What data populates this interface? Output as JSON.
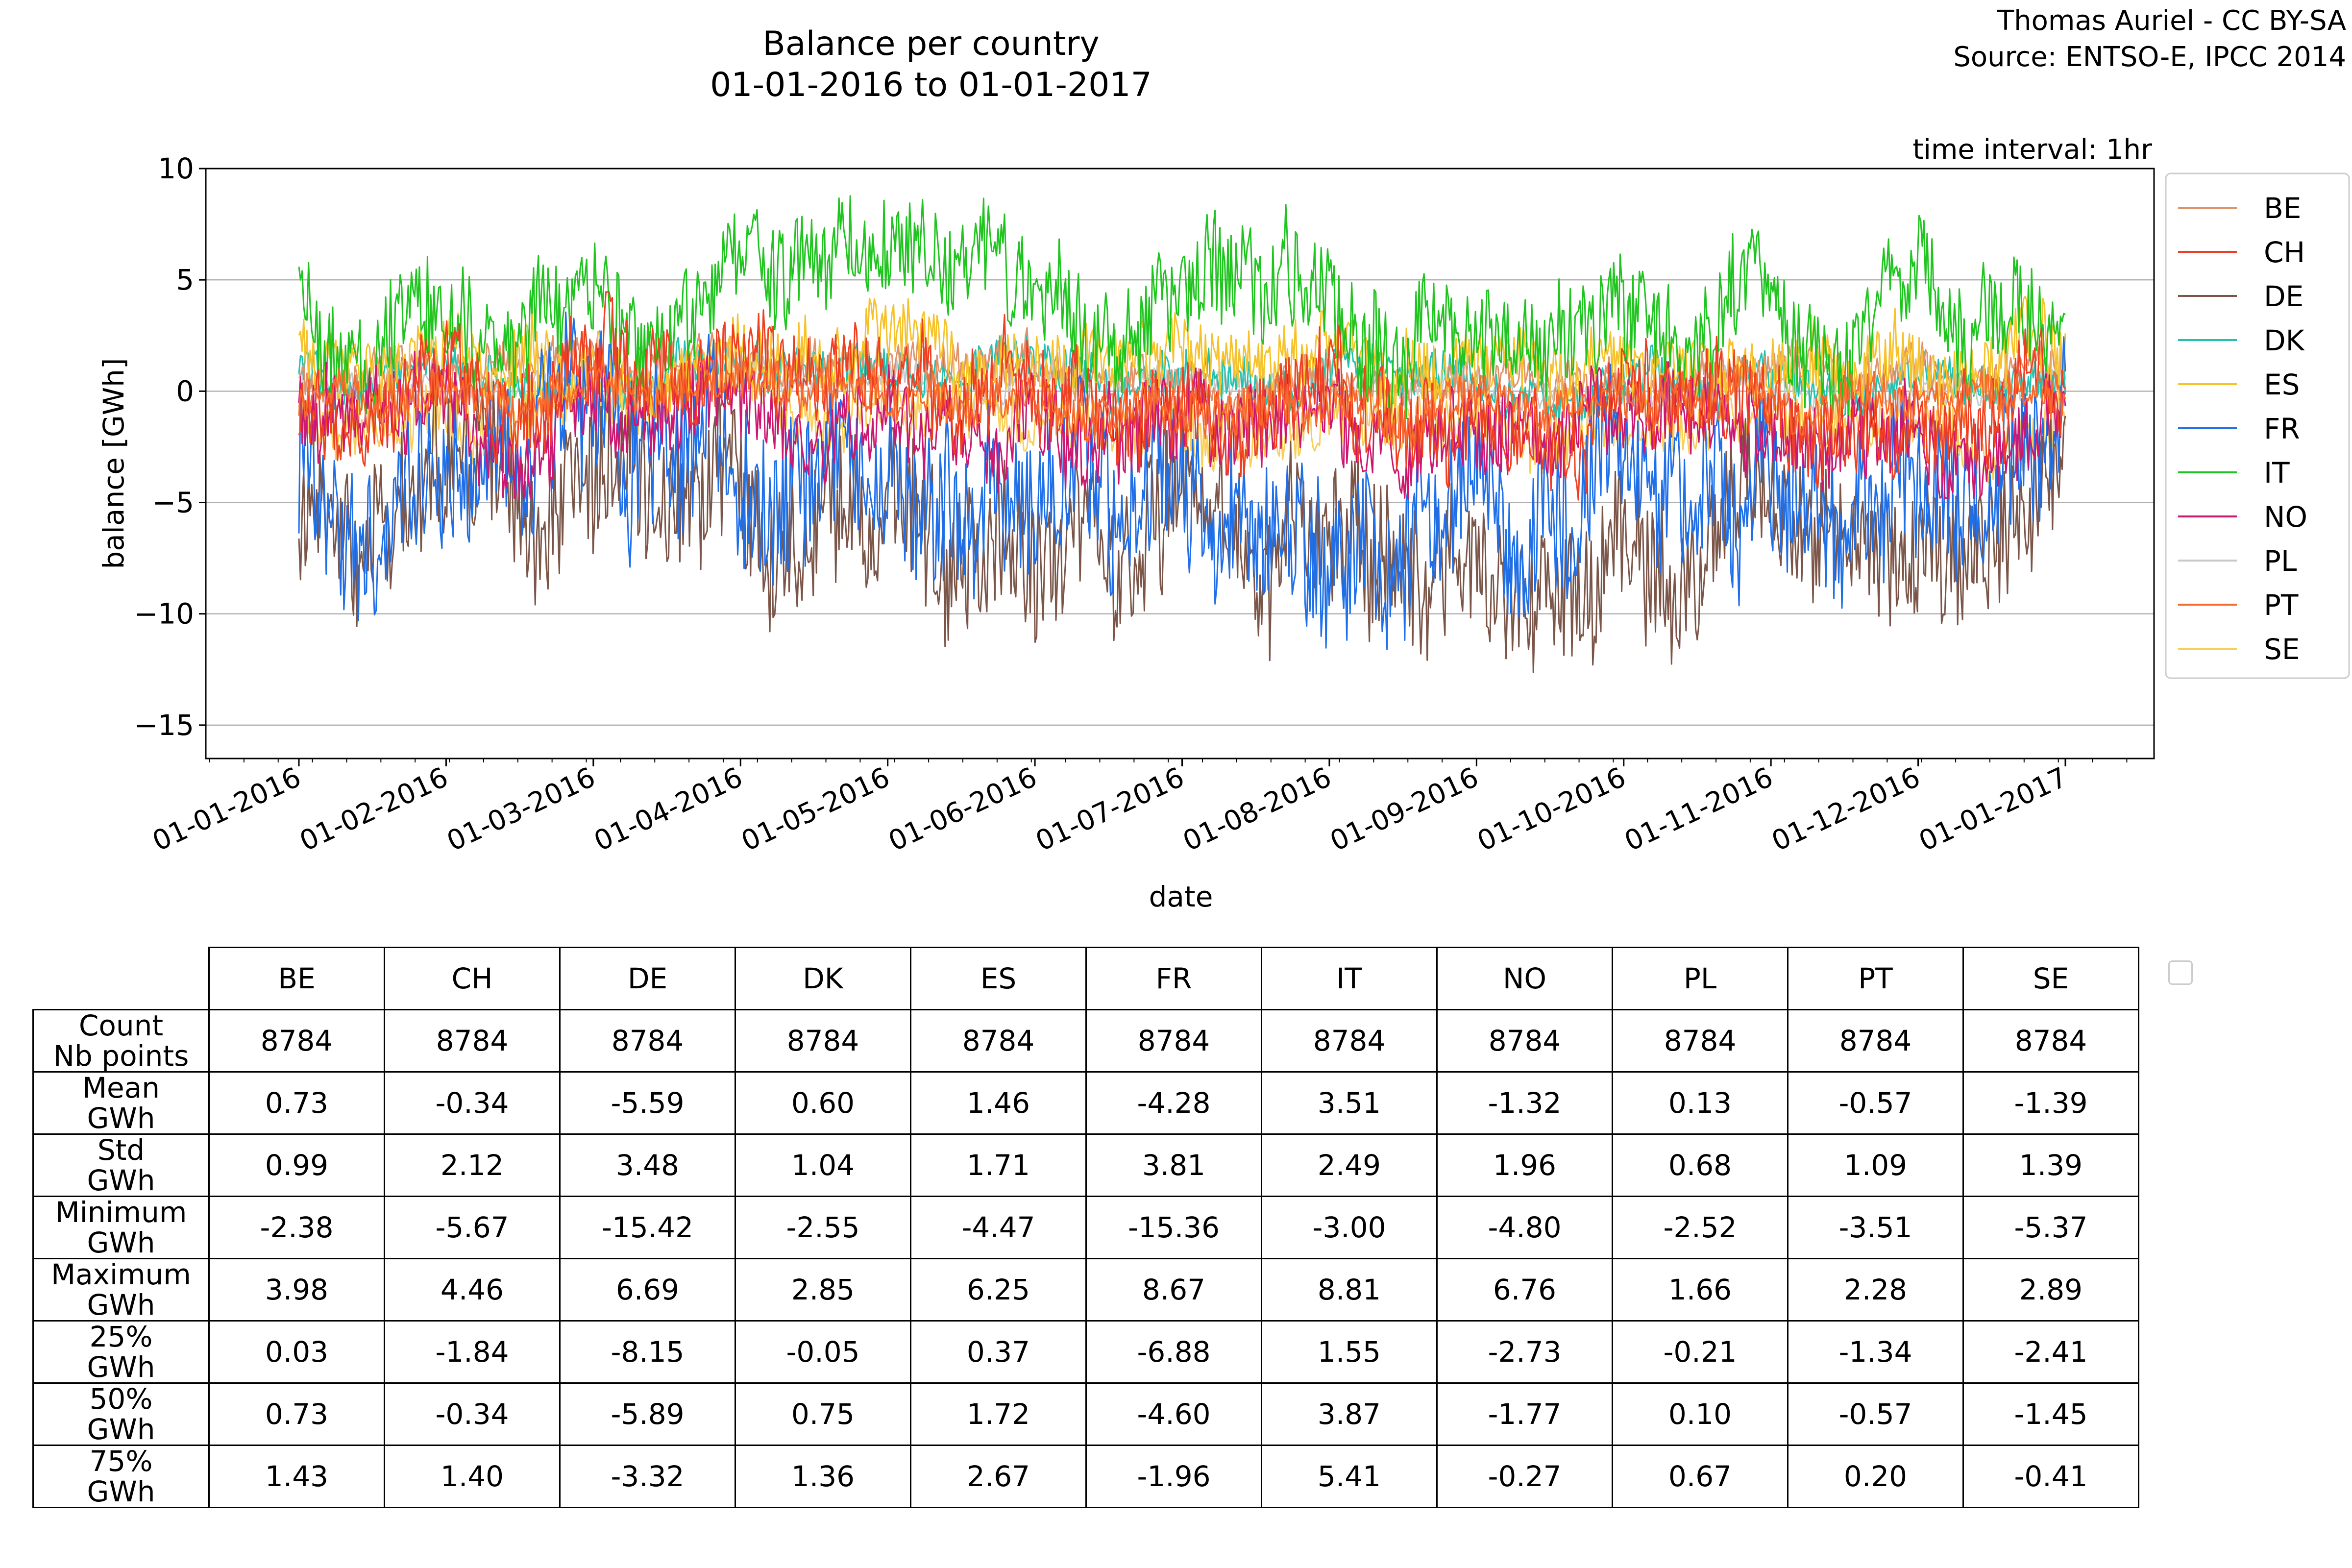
{
  "header": {
    "title_line1": "Balance per country",
    "title_line2": "01-01-2016 to 01-01-2017",
    "credit_line1": "Thomas Auriel - CC BY-SA",
    "credit_line2": "Source: ENTSO-E, IPCC 2014"
  },
  "chart_data": {
    "type": "line",
    "title": "Balance per country",
    "subtitle": "01-01-2016 to 01-01-2017",
    "annotation": "time interval: 1hr",
    "xlabel": "date",
    "ylabel": "balance [GWh]",
    "ylim": [
      -16.5,
      10
    ],
    "yticks": [
      10,
      5,
      0,
      -5,
      -10,
      -15
    ],
    "ytick_labels": [
      "10",
      "5",
      "0",
      "−5",
      "−10",
      "−15"
    ],
    "xticks": [
      "01-01-2016",
      "01-02-2016",
      "01-03-2016",
      "01-04-2016",
      "01-05-2016",
      "01-06-2016",
      "01-07-2016",
      "01-08-2016",
      "01-09-2016",
      "01-10-2016",
      "01-11-2016",
      "01-12-2016",
      "01-01-2017"
    ],
    "grid": "horizontal",
    "legend_position": "right",
    "series": [
      {
        "name": "BE",
        "color": "#e0926a",
        "mean": 0.73,
        "std": 0.99,
        "min": -2.38,
        "max": 3.98
      },
      {
        "name": "CH",
        "color": "#ee3f22",
        "mean": -0.34,
        "std": 2.12,
        "min": -5.67,
        "max": 4.46
      },
      {
        "name": "DE",
        "color": "#7a5548",
        "mean": -5.59,
        "std": 3.48,
        "min": -15.42,
        "max": 6.69
      },
      {
        "name": "DK",
        "color": "#22c1b0",
        "mean": 0.6,
        "std": 1.04,
        "min": -2.55,
        "max": 2.85
      },
      {
        "name": "ES",
        "color": "#f6c22c",
        "mean": 1.46,
        "std": 1.71,
        "min": -4.47,
        "max": 6.25
      },
      {
        "name": "FR",
        "color": "#1f6fe8",
        "mean": -4.28,
        "std": 3.81,
        "min": -15.36,
        "max": 8.67
      },
      {
        "name": "IT",
        "color": "#1fc41f",
        "mean": 3.51,
        "std": 2.49,
        "min": -3.0,
        "max": 8.81
      },
      {
        "name": "NO",
        "color": "#cc1770",
        "mean": -1.32,
        "std": 1.96,
        "min": -4.8,
        "max": 6.76
      },
      {
        "name": "PL",
        "color": "#c8c8c8",
        "mean": 0.13,
        "std": 0.68,
        "min": -2.52,
        "max": 1.66
      },
      {
        "name": "PT",
        "color": "#f86a2c",
        "mean": -0.57,
        "std": 1.09,
        "min": -3.51,
        "max": 2.28
      },
      {
        "name": "SE",
        "color": "#f7cf5a",
        "mean": -1.39,
        "std": 1.39,
        "min": -5.37,
        "max": 2.89
      }
    ]
  },
  "table": {
    "columns": [
      "BE",
      "CH",
      "DE",
      "DK",
      "ES",
      "FR",
      "IT",
      "NO",
      "PL",
      "PT",
      "SE"
    ],
    "rows": [
      {
        "label1": "Count",
        "label2": "Nb points",
        "values": [
          "8784",
          "8784",
          "8784",
          "8784",
          "8784",
          "8784",
          "8784",
          "8784",
          "8784",
          "8784",
          "8784"
        ]
      },
      {
        "label1": "Mean",
        "label2": "GWh",
        "values": [
          "0.73",
          "-0.34",
          "-5.59",
          "0.60",
          "1.46",
          "-4.28",
          "3.51",
          "-1.32",
          "0.13",
          "-0.57",
          "-1.39"
        ]
      },
      {
        "label1": "Std",
        "label2": "GWh",
        "values": [
          "0.99",
          "2.12",
          "3.48",
          "1.04",
          "1.71",
          "3.81",
          "2.49",
          "1.96",
          "0.68",
          "1.09",
          "1.39"
        ]
      },
      {
        "label1": "Minimum",
        "label2": "GWh",
        "values": [
          "-2.38",
          "-5.67",
          "-15.42",
          "-2.55",
          "-4.47",
          "-15.36",
          "-3.00",
          "-4.80",
          "-2.52",
          "-3.51",
          "-5.37"
        ]
      },
      {
        "label1": "Maximum",
        "label2": "GWh",
        "values": [
          "3.98",
          "4.46",
          "6.69",
          "2.85",
          "6.25",
          "8.67",
          "8.81",
          "6.76",
          "1.66",
          "2.28",
          "2.89"
        ]
      },
      {
        "label1": "25%",
        "label2": "GWh",
        "values": [
          "0.03",
          "-1.84",
          "-8.15",
          "-0.05",
          "0.37",
          "-6.88",
          "1.55",
          "-2.73",
          "-0.21",
          "-1.34",
          "-2.41"
        ]
      },
      {
        "label1": "50%",
        "label2": "GWh",
        "values": [
          "0.73",
          "-0.34",
          "-5.89",
          "0.75",
          "1.72",
          "-4.60",
          "3.87",
          "-1.77",
          "0.10",
          "-0.57",
          "-1.45"
        ]
      },
      {
        "label1": "75%",
        "label2": "GWh",
        "values": [
          "1.43",
          "1.40",
          "-3.32",
          "1.36",
          "2.67",
          "-1.96",
          "5.41",
          "-0.27",
          "0.67",
          "0.20",
          "-0.41"
        ]
      }
    ]
  }
}
